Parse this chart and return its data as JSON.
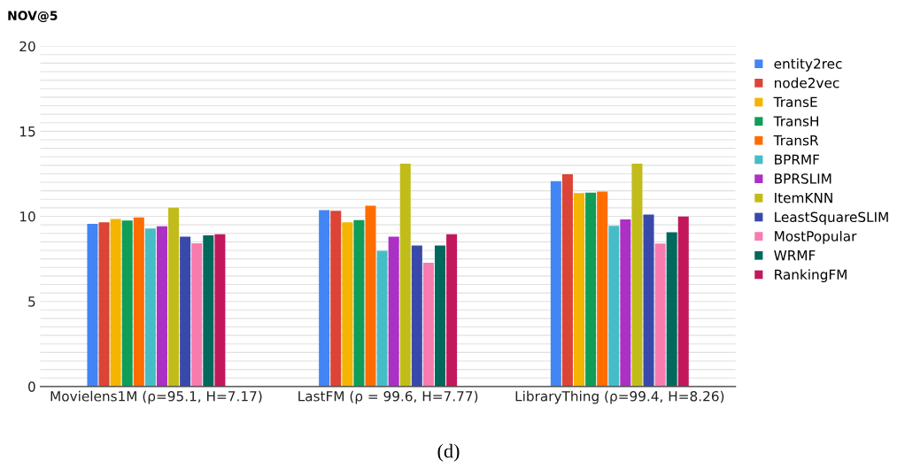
{
  "chart_data": {
    "type": "bar",
    "ylabel": "NOV@5",
    "categories": [
      "Movielens1M (ρ=95.1, H=7.17)",
      "LastFM (ρ = 99.6, H=7.77)",
      "LibraryThing (ρ=99.4, H=8.26)"
    ],
    "series": [
      {
        "name": "entity2rec",
        "color": "#4285f4",
        "values": [
          9.56,
          10.36,
          12.07
        ]
      },
      {
        "name": "node2vec",
        "color": "#db4437",
        "values": [
          9.65,
          10.32,
          12.47
        ]
      },
      {
        "name": "TransE",
        "color": "#f4b400",
        "values": [
          9.85,
          9.65,
          11.36
        ]
      },
      {
        "name": "TransH",
        "color": "#0f9d58",
        "values": [
          9.75,
          9.78,
          11.39
        ]
      },
      {
        "name": "TransR",
        "color": "#ff6d00",
        "values": [
          9.94,
          10.63,
          11.46
        ]
      },
      {
        "name": "BPRMF",
        "color": "#46bdc6",
        "values": [
          9.28,
          7.97,
          9.44
        ]
      },
      {
        "name": "BPRSLIM",
        "color": "#ab30c4",
        "values": [
          9.42,
          8.81,
          9.82
        ]
      },
      {
        "name": "ItemKNN",
        "color": "#c2bc1a",
        "values": [
          10.51,
          13.09,
          13.09
        ]
      },
      {
        "name": "LeastSquareSLIM",
        "color": "#3949ab",
        "values": [
          8.8,
          8.28,
          10.11
        ]
      },
      {
        "name": "MostPopular",
        "color": "#f77bae",
        "values": [
          8.42,
          7.27,
          8.4
        ]
      },
      {
        "name": "WRMF",
        "color": "#00695c",
        "values": [
          8.88,
          8.28,
          9.07
        ]
      },
      {
        "name": "RankingFM",
        "color": "#c2185b",
        "values": [
          8.95,
          8.95,
          9.99
        ]
      }
    ],
    "ylim": [
      0,
      20
    ],
    "yticks": [
      0,
      5,
      10,
      15,
      20
    ],
    "grid": "y",
    "legend": "right",
    "annotations": [
      "(d)"
    ]
  }
}
